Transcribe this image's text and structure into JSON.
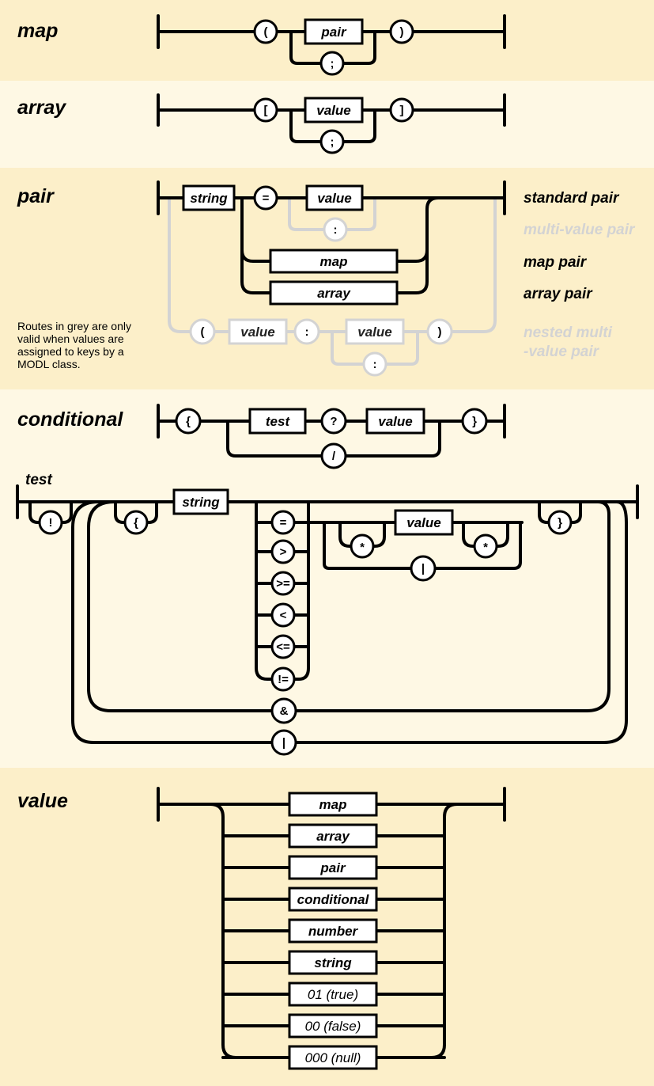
{
  "sections": {
    "map": {
      "title": "map",
      "open": "(",
      "close": ")",
      "item": "pair",
      "separator": ";"
    },
    "array": {
      "title": "array",
      "open": "[",
      "close": "]",
      "item": "value",
      "separator": ";"
    },
    "pair": {
      "title": "pair",
      "key": "string",
      "equals": "=",
      "value": "value",
      "colon": ":",
      "map": "map",
      "array": "array",
      "nested_open": "(",
      "nested_value_a": "value",
      "nested_colon": ":",
      "nested_value_b": "value",
      "nested_sep": ":",
      "nested_close": ")",
      "labels": {
        "standard": "standard pair",
        "multi_value": "multi-value pair",
        "map_pair": "map pair",
        "array_pair": "array pair",
        "nested_line1": "nested multi",
        "nested_line2": "-value pair"
      },
      "note_lines": [
        "Routes in grey are only",
        "valid when values are",
        "assigned to keys by a",
        "MODL class."
      ]
    },
    "conditional": {
      "title": "conditional",
      "open": "{",
      "test": "test",
      "question": "?",
      "value": "value",
      "slash": "/",
      "close": "}"
    },
    "test": {
      "title": "test",
      "not": "!",
      "open": "{",
      "key": "string",
      "operators": [
        "=",
        ">",
        ">=",
        "<",
        "<=",
        "!="
      ],
      "wildcard_left": "*",
      "value": "value",
      "wildcard_right": "*",
      "or_inner": "|",
      "close": "}",
      "and": "&",
      "or": "|"
    },
    "value": {
      "title": "value",
      "options": [
        "map",
        "array",
        "pair",
        "conditional",
        "number",
        "string",
        "01 (true)",
        "00 (false)",
        "000 (null)"
      ]
    }
  }
}
